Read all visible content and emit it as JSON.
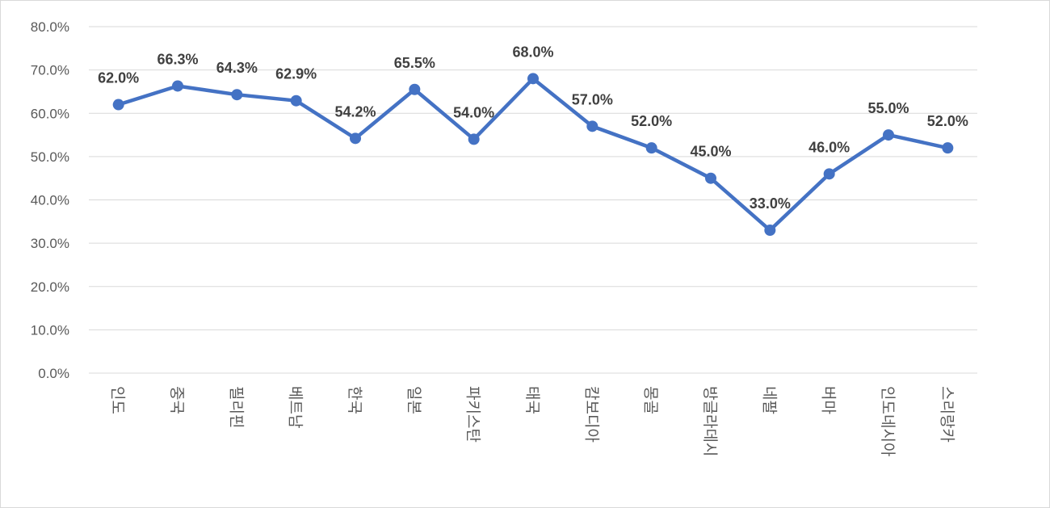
{
  "chart_data": {
    "type": "line",
    "title": "",
    "xlabel": "",
    "ylabel": "",
    "categories": [
      "인도",
      "중국",
      "필리핀",
      "베트남",
      "한국",
      "일본",
      "파키스탄",
      "태국",
      "캄보디아",
      "몽골",
      "방글라데시",
      "네팔",
      "버마",
      "인도네시아",
      "스리랑카"
    ],
    "series": [
      {
        "name": "",
        "color": "#4472C4",
        "values": [
          62.0,
          66.3,
          64.3,
          62.9,
          54.2,
          65.5,
          54.0,
          68.0,
          57.0,
          52.0,
          45.0,
          33.0,
          46.0,
          55.0,
          52.0
        ],
        "labels": [
          "62.0%",
          "66.3%",
          "64.3%",
          "62.9%",
          "54.2%",
          "65.5%",
          "54.0%",
          "68.0%",
          "57.0%",
          "52.0%",
          "45.0%",
          "33.0%",
          "46.0%",
          "55.0%",
          "52.0%"
        ]
      }
    ],
    "ylim": [
      0,
      80
    ],
    "yticks": [
      0,
      10,
      20,
      30,
      40,
      50,
      60,
      70,
      80
    ],
    "ytick_labels": [
      "0.0%",
      "10.0%",
      "20.0%",
      "30.0%",
      "40.0%",
      "50.0%",
      "60.0%",
      "70.0%",
      "80.0%"
    ],
    "grid": true,
    "legend": "none"
  }
}
